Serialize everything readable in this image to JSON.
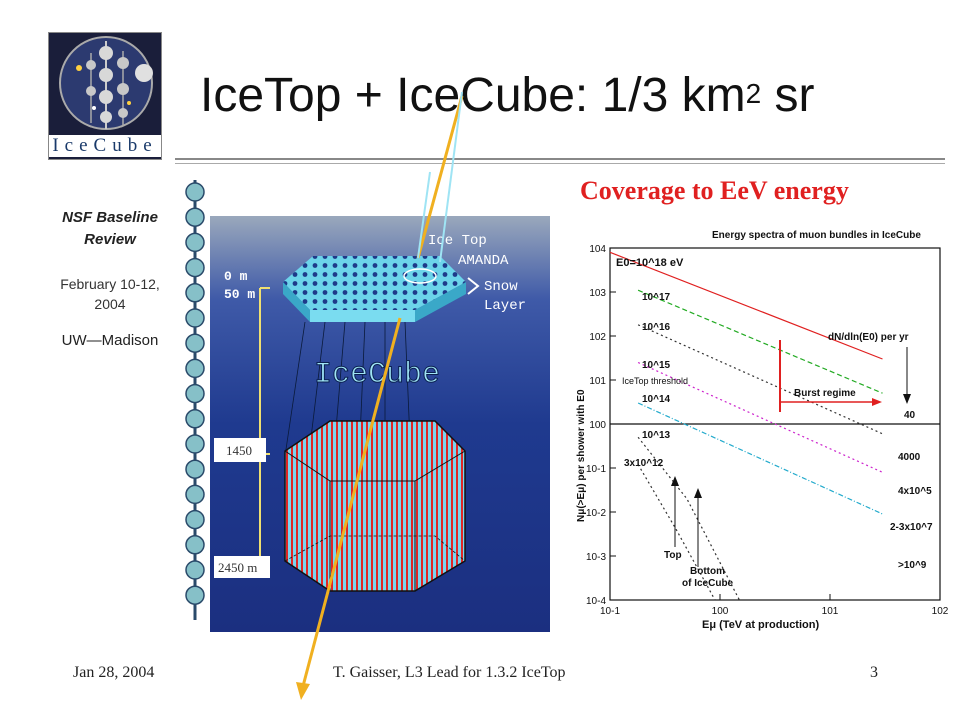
{
  "slide": {
    "title_main": "IceTop + IceCube: 1/3 km",
    "title_sup": "2",
    "title_end": " sr",
    "subtitle": "Coverage to EeV energy",
    "logo_word": "IceCube"
  },
  "sidebar": {
    "review_line1": "NSF Baseline",
    "review_line2": "Review",
    "dates_line1": "February 10-12,",
    "dates_line2": "2004",
    "institution": "UW—Madison"
  },
  "detector": {
    "label_icetop": "Ice Top",
    "label_amanda": "AMANDA",
    "label_snow1": "Snow",
    "label_snow2": "Layer",
    "depth_0": "0 m",
    "depth_50": "50 m",
    "depth_1450": "1450",
    "depth_2450": "2450 m",
    "label_icecube": "IceCube"
  },
  "chart_data": {
    "type": "line",
    "title": "Energy spectra of muon bundles in IceCube",
    "xlabel": "Eμ    (TeV at production)",
    "ylabel": "Nμ(>Eμ)    per shower with E0",
    "xscale": "log",
    "yscale": "log",
    "xlim": [
      0.1,
      100
    ],
    "ylim": [
      0.0001,
      10000
    ],
    "x_ticks": [
      "10-1",
      "100",
      "101",
      "102"
    ],
    "y_ticks": [
      "104",
      "103",
      "102",
      "101",
      "100",
      "10-1",
      "10-2",
      "10-3",
      "10-4"
    ],
    "series": [
      {
        "name": "E0=10^18 eV",
        "color": "#e02020",
        "x": [
          0.1,
          30
        ],
        "y": [
          8000,
          30
        ]
      },
      {
        "name": "10^17",
        "color": "#22aa22",
        "x": [
          0.18,
          30
        ],
        "y": [
          1100,
          5
        ]
      },
      {
        "name": "10^16",
        "color": "#333333",
        "x": [
          0.18,
          30
        ],
        "y": [
          180,
          0.6
        ]
      },
      {
        "name": "10^15",
        "color": "#cc22cc",
        "x": [
          0.18,
          30
        ],
        "y": [
          25,
          0.08
        ]
      },
      {
        "name": "10^14",
        "color": "#22aacc",
        "x": [
          0.18,
          30
        ],
        "y": [
          3,
          0.009
        ]
      },
      {
        "name": "10^13",
        "color": "#333333",
        "x": [
          0.18,
          0.5,
          1.5
        ],
        "y": [
          0.5,
          0.02,
          0.0001
        ]
      },
      {
        "name": "3x10^12",
        "color": "#333333",
        "x": [
          0.18,
          0.4,
          0.9
        ],
        "y": [
          0.12,
          0.004,
          0.0001
        ]
      }
    ],
    "annotations": {
      "e0_label": "E0=10^18 eV",
      "e17": "10^17",
      "e16": "10^16",
      "e15": "10^15",
      "e14": "10^14",
      "e13": "10^13",
      "e12": "3x10^12",
      "dndln": "dN/dln(E0) per yr",
      "icetop_threshold": "IceTop threshold",
      "burst": "Burst regime",
      "n40": "40",
      "n4000": "4000",
      "n4e5": "4x10^5",
      "n23e7": "2-3x10^7",
      "ngt1e9": ">10^9",
      "top": "Top",
      "bottom1": "Bottom",
      "bottom2": "of IceCube"
    }
  },
  "footer": {
    "date": "Jan 28, 2004",
    "center": "T. Gaisser, L3 Lead for 1.3.2 IceTop",
    "page": "3"
  },
  "colors": {
    "accent_red": "#e02020",
    "detector_blue": "#1e3a8a",
    "cyan": "#5fd0e8",
    "arrow_yellow": "#f0b020"
  }
}
